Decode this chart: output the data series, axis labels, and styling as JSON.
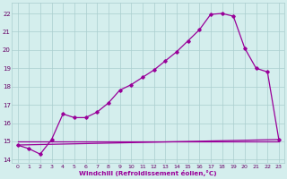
{
  "xlabel": "Windchill (Refroidissement éolien,°C)",
  "bg_color": "#d4eeed",
  "grid_color": "#aacece",
  "line_color": "#990099",
  "xlim": [
    -0.5,
    23.5
  ],
  "ylim": [
    13.8,
    22.6
  ],
  "yticks": [
    14,
    15,
    16,
    17,
    18,
    19,
    20,
    21,
    22
  ],
  "xticks": [
    0,
    1,
    2,
    3,
    4,
    5,
    6,
    7,
    8,
    9,
    10,
    11,
    12,
    13,
    14,
    15,
    16,
    17,
    18,
    19,
    20,
    21,
    22,
    23
  ],
  "line1_x": [
    0,
    1,
    2,
    3,
    4,
    5,
    6,
    7,
    8,
    9,
    10,
    11,
    12,
    13,
    14,
    15,
    16,
    17,
    18,
    19,
    20,
    21,
    22,
    23
  ],
  "line1_y": [
    14.8,
    14.6,
    14.3,
    15.1,
    16.5,
    16.3,
    16.3,
    16.6,
    17.1,
    17.8,
    18.1,
    18.5,
    18.9,
    19.4,
    19.9,
    20.5,
    21.1,
    21.95,
    22.0,
    21.85,
    20.1,
    19.0,
    18.8,
    15.1
  ],
  "line2_x": [
    0,
    23
  ],
  "line2_y": [
    14.8,
    15.1
  ],
  "line3_x": [
    0,
    23
  ],
  "line3_y": [
    15.0,
    15.0
  ]
}
